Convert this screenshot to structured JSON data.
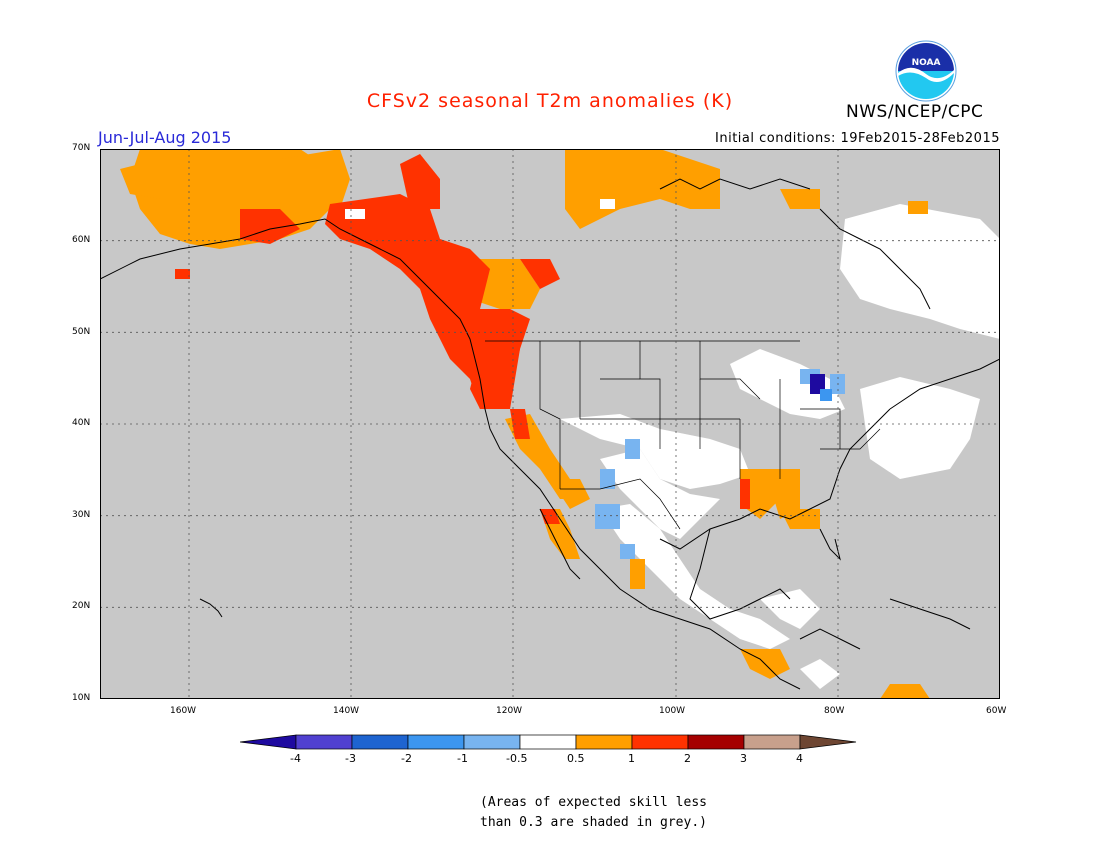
{
  "header": {
    "title": "CFSv2 seasonal T2m anomalies (K)",
    "season": "Jun-Jul-Aug 2015",
    "initial_conditions": "Initial conditions: 19Feb2015-28Feb2015",
    "agency": "NWS/NCEP/CPC",
    "logo_text": "NOAA"
  },
  "map": {
    "lat_labels": [
      "70N",
      "60N",
      "50N",
      "40N",
      "30N",
      "20N",
      "10N"
    ],
    "lon_labels": [
      "160W",
      "140W",
      "120W",
      "100W",
      "80W",
      "60W"
    ],
    "lat_range": [
      10,
      70
    ],
    "lon_range": [
      -171,
      -60
    ],
    "gridlines": true,
    "mask_color": "#c8c8c8"
  },
  "legend": {
    "ticks": [
      "-4",
      "-3",
      "-2",
      "-1",
      "-0.5",
      "0.5",
      "1",
      "2",
      "3",
      "4"
    ],
    "colors": [
      "#1e0aa0",
      "#5040d0",
      "#1e64d0",
      "#3c96f0",
      "#78b4f0",
      "#ffffff",
      "#ff9f00",
      "#ff3200",
      "#a50000",
      "#c8a08c",
      "#6e4632"
    ],
    "note_line1": "(Areas of expected skill less",
    "note_line2": "than 0.3 are shaded in grey.)"
  },
  "colors": {
    "title": "#ff2000",
    "season": "#2a2ad8",
    "grey_mask": "#c8c8c8",
    "positive_weak": "#ff9f00",
    "positive_mid": "#ff3200",
    "negative_weak": "#78b4f0",
    "negative_strong": "#1e0aa0"
  }
}
